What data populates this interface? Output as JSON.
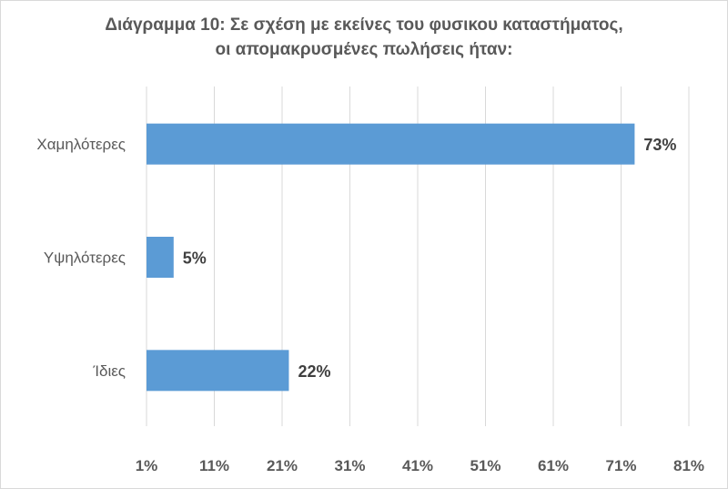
{
  "chart_data": {
    "type": "bar",
    "orientation": "horizontal",
    "title": [
      "Διάγραμμα 10: Σε σχέση με εκείνες του φυσικου καταστήματος,",
      "οι απομακρυσμένες πωλήσεις ήταν:"
    ],
    "categories": [
      "Χαμηλότερες",
      "Υψηλότερες",
      "Ίδιες"
    ],
    "values": [
      73,
      5,
      22
    ],
    "data_labels": [
      "73%",
      "5%",
      "22%"
    ],
    "xlim": [
      1,
      81
    ],
    "x_ticks": [
      "1%",
      "11%",
      "21%",
      "31%",
      "41%",
      "51%",
      "61%",
      "71%",
      "81%"
    ],
    "x_tick_values": [
      1,
      11,
      21,
      31,
      41,
      51,
      61,
      71,
      81
    ],
    "grid": "vertical",
    "legend": "none",
    "colors": {
      "bar": "#5B9BD5",
      "grid": "#d9d9d9",
      "text": "#595959",
      "label": "#404040"
    }
  }
}
